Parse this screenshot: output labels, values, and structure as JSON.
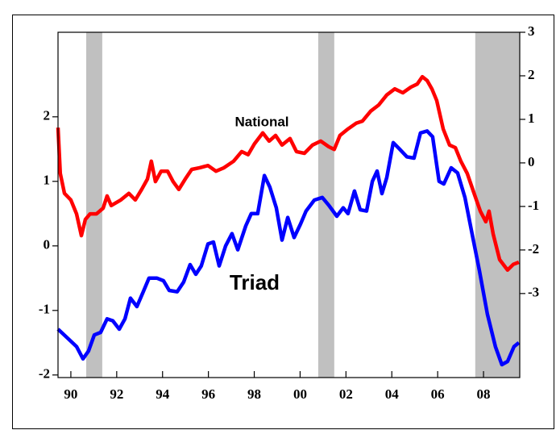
{
  "chart_data": {
    "type": "line",
    "annotations": [
      "National",
      "Triad"
    ],
    "xlim": [
      1989.44,
      2009.58
    ],
    "xticks": [
      {
        "value": 1990,
        "label": "90"
      },
      {
        "value": 1992,
        "label": "92"
      },
      {
        "value": 1994,
        "label": "94"
      },
      {
        "value": 1996,
        "label": "96"
      },
      {
        "value": 1998,
        "label": "98"
      },
      {
        "value": 2000,
        "label": "00"
      },
      {
        "value": 2002,
        "label": "02"
      },
      {
        "value": 2004,
        "label": "04"
      },
      {
        "value": 2006,
        "label": "06"
      },
      {
        "value": 2008,
        "label": "08"
      }
    ],
    "ylim": [
      -2.04,
      3.31
    ],
    "yticks": [
      -2,
      -1,
      0,
      1,
      2
    ],
    "y2lim": [
      -4.93,
      3
    ],
    "y2ticks": [
      -3,
      -2,
      -1,
      0,
      1,
      2,
      3
    ],
    "shaded_periods": [
      [
        1990.67,
        1991.37
      ],
      [
        2000.79,
        2001.49
      ],
      [
        2007.64,
        2009.58
      ]
    ],
    "shade_color": "#c0c0c0",
    "series": [
      {
        "name": "National",
        "color": "#ff0000",
        "axis": "y2",
        "x": [
          1989.44,
          1989.54,
          1989.72,
          1990,
          1990.25,
          1990.46,
          1990.63,
          1990.84,
          1991.12,
          1991.41,
          1991.58,
          1991.76,
          1992.18,
          1992.53,
          1992.81,
          1993.09,
          1993.34,
          1993.51,
          1993.69,
          1993.94,
          1994.22,
          1994.46,
          1994.71,
          1994.99,
          1995.27,
          1995.62,
          1995.98,
          1996.33,
          1996.68,
          1997.1,
          1997.45,
          1997.73,
          1998.01,
          1998.37,
          1998.65,
          1998.93,
          1999.21,
          1999.56,
          1999.84,
          2000.19,
          2000.54,
          2000.9,
          2001.25,
          2001.49,
          2001.74,
          2002.09,
          2002.44,
          2002.72,
          2003.08,
          2003.43,
          2003.78,
          2004.13,
          2004.48,
          2004.83,
          2005.11,
          2005.33,
          2005.54,
          2005.75,
          2005.96,
          2006.24,
          2006.52,
          2006.77,
          2007.01,
          2007.29,
          2007.57,
          2007.86,
          2008.1,
          2008.24,
          2008.42,
          2008.7,
          2009.05,
          2009.3,
          2009.54
        ],
        "values": [
          0.81,
          -0.24,
          -0.7,
          -0.85,
          -1.17,
          -1.67,
          -1.3,
          -1.17,
          -1.17,
          -1.04,
          -0.76,
          -0.98,
          -0.85,
          -0.7,
          -0.85,
          -0.61,
          -0.37,
          0.04,
          -0.43,
          -0.19,
          -0.19,
          -0.43,
          -0.61,
          -0.37,
          -0.15,
          -0.11,
          -0.06,
          -0.19,
          -0.11,
          0.04,
          0.26,
          0.19,
          0.44,
          0.69,
          0.5,
          0.63,
          0.41,
          0.56,
          0.26,
          0.22,
          0.41,
          0.5,
          0.37,
          0.31,
          0.63,
          0.78,
          0.91,
          0.96,
          1.19,
          1.33,
          1.56,
          1.7,
          1.61,
          1.74,
          1.81,
          1.98,
          1.89,
          1.7,
          1.43,
          0.78,
          0.41,
          0.35,
          0.04,
          -0.24,
          -0.67,
          -1.11,
          -1.35,
          -1.11,
          -1.63,
          -2.22,
          -2.46,
          -2.33,
          -2.28
        ]
      },
      {
        "name": "Triad",
        "color": "#0000ff",
        "axis": "y",
        "x": [
          1989.44,
          1989.89,
          1990.25,
          1990.53,
          1990.77,
          1991.02,
          1991.3,
          1991.58,
          1991.83,
          1992.11,
          1992.36,
          1992.6,
          1992.88,
          1993.16,
          1993.41,
          1993.76,
          1994.04,
          1994.29,
          1994.64,
          1994.92,
          1995.2,
          1995.45,
          1995.69,
          1995.98,
          1996.22,
          1996.47,
          1996.75,
          1997.03,
          1997.28,
          1997.63,
          1997.87,
          1998.15,
          1998.44,
          1998.68,
          1998.96,
          1999.21,
          1999.46,
          1999.74,
          2000.02,
          2000.26,
          2000.62,
          2000.97,
          2001.25,
          2001.6,
          2001.88,
          2002.09,
          2002.37,
          2002.62,
          2002.9,
          2003.15,
          2003.36,
          2003.57,
          2003.78,
          2004.06,
          2004.34,
          2004.66,
          2004.97,
          2005.25,
          2005.54,
          2005.78,
          2006.06,
          2006.27,
          2006.59,
          2006.87,
          2007.19,
          2007.5,
          2007.82,
          2008.17,
          2008.52,
          2008.8,
          2009.05,
          2009.33,
          2009.54
        ],
        "values": [
          -1.29,
          -1.44,
          -1.56,
          -1.75,
          -1.63,
          -1.38,
          -1.34,
          -1.13,
          -1.16,
          -1.29,
          -1.13,
          -0.81,
          -0.94,
          -0.71,
          -0.5,
          -0.5,
          -0.54,
          -0.69,
          -0.71,
          -0.56,
          -0.29,
          -0.44,
          -0.31,
          0.03,
          0.06,
          -0.31,
          0,
          0.19,
          -0.06,
          0.31,
          0.5,
          0.5,
          1.09,
          0.91,
          0.59,
          0.09,
          0.44,
          0.13,
          0.34,
          0.54,
          0.71,
          0.75,
          0.63,
          0.46,
          0.59,
          0.5,
          0.85,
          0.56,
          0.54,
          1,
          1.16,
          0.81,
          1.06,
          1.6,
          1.5,
          1.38,
          1.36,
          1.75,
          1.78,
          1.69,
          1,
          0.96,
          1.21,
          1.13,
          0.75,
          0.19,
          -0.38,
          -1.06,
          -1.56,
          -1.84,
          -1.79,
          -1.56,
          -1.5
        ]
      }
    ]
  }
}
